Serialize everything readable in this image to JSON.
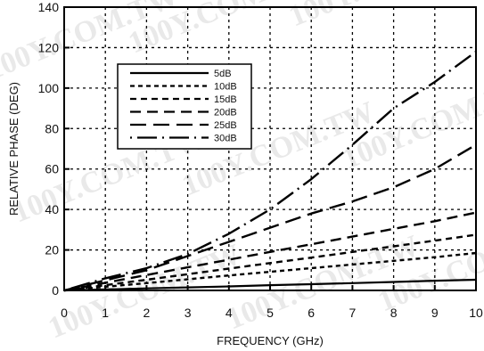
{
  "watermark_text": "100Y.COM.TW",
  "chart_data": {
    "type": "line",
    "title": "",
    "xlabel": "FREQUENCY (GHz)",
    "ylabel": "RELATIVE PHASE (DEG)",
    "xlim": [
      0,
      10
    ],
    "ylim": [
      0,
      140
    ],
    "xticks": [
      0,
      1,
      2,
      3,
      4,
      5,
      6,
      7,
      8,
      9,
      10
    ],
    "yticks": [
      0,
      20,
      40,
      60,
      80,
      100,
      120,
      140
    ],
    "grid": true,
    "legend_position": "upper-left",
    "series": [
      {
        "name": "5dB",
        "dash": "solid",
        "x": [
          0,
          1,
          2,
          3,
          4,
          5,
          6,
          7,
          8,
          9,
          10
        ],
        "y": [
          0,
          0.5,
          1,
          1.5,
          2,
          2.6,
          3.1,
          3.6,
          4.2,
          4.8,
          5.3
        ]
      },
      {
        "name": "10dB",
        "dash": "short",
        "x": [
          0,
          1,
          2,
          3,
          4,
          5,
          6,
          7,
          8,
          9,
          10
        ],
        "y": [
          0,
          1.8,
          3.6,
          5.5,
          7.4,
          9.2,
          11,
          12.8,
          14.6,
          16.4,
          18.5
        ]
      },
      {
        "name": "15dB",
        "dash": "medium",
        "x": [
          0,
          1,
          2,
          3,
          4,
          5,
          6,
          7,
          8,
          9,
          10
        ],
        "y": [
          0,
          2.6,
          5.3,
          8,
          10.8,
          13.5,
          16.2,
          19,
          21.8,
          24.6,
          27.5
        ]
      },
      {
        "name": "20dB",
        "dash": "long",
        "x": [
          0,
          1,
          2,
          3,
          4,
          5,
          6,
          7,
          8,
          9,
          10
        ],
        "y": [
          0,
          3.8,
          7.6,
          11.4,
          15.2,
          19,
          22.8,
          26.6,
          30.4,
          34.2,
          38.5
        ]
      },
      {
        "name": "25dB",
        "dash": "longer",
        "x": [
          0,
          1,
          2,
          3,
          4,
          5,
          6,
          7,
          8,
          9,
          10
        ],
        "y": [
          0,
          5,
          10,
          17,
          24,
          31,
          38,
          44,
          51,
          60,
          72
        ]
      },
      {
        "name": "30dB",
        "dash": "dotlong",
        "x": [
          0,
          1,
          2,
          3,
          4,
          5,
          6,
          7,
          8,
          9,
          10
        ],
        "y": [
          0,
          6,
          11,
          18,
          28,
          40,
          55,
          72,
          90,
          103,
          118
        ]
      }
    ]
  }
}
